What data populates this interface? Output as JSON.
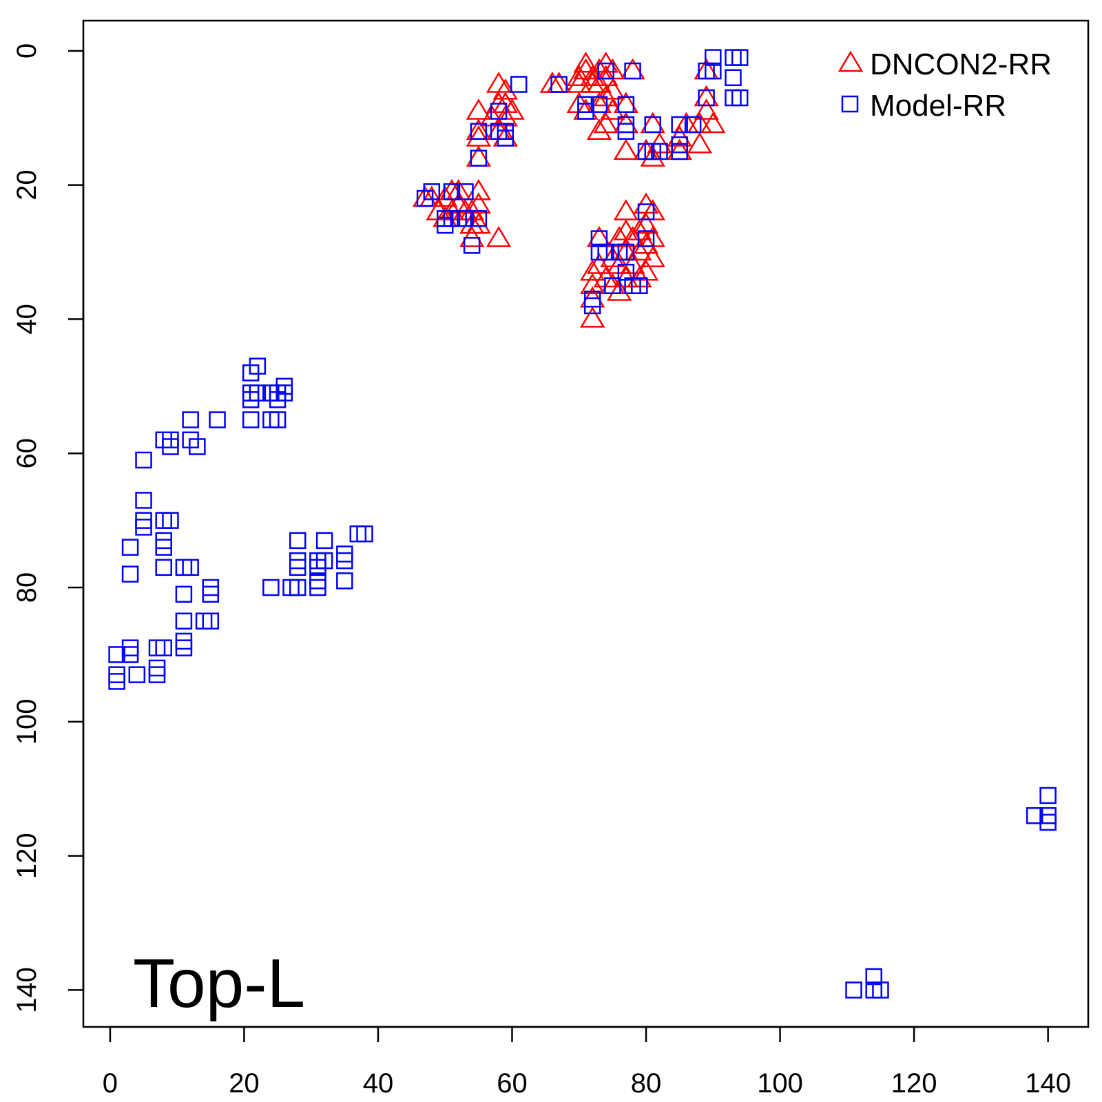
{
  "chart_data": {
    "type": "scatter",
    "title": "",
    "xlabel": "",
    "ylabel": "",
    "annotation": "Top-L",
    "xlim": [
      -4,
      146
    ],
    "ylim": [
      145.5,
      -4.5
    ],
    "y_reversed": true,
    "x_ticks": [
      0,
      20,
      40,
      60,
      80,
      100,
      120,
      140
    ],
    "y_ticks": [
      0,
      20,
      40,
      60,
      80,
      100,
      120,
      140
    ],
    "x_tick_labels": [
      "0",
      "20",
      "40",
      "60",
      "80",
      "100",
      "120",
      "140"
    ],
    "y_tick_labels": [
      "0",
      "20",
      "40",
      "60",
      "80",
      "100",
      "120",
      "140"
    ],
    "grid": false,
    "legend_position": "top-right",
    "series": [
      {
        "name": "DNCON2-RR",
        "marker": "triangle",
        "color": "#ff0000",
        "points": [
          [
            58,
            5
          ],
          [
            59,
            6
          ],
          [
            58,
            8
          ],
          [
            59,
            8
          ],
          [
            60,
            9
          ],
          [
            57,
            10
          ],
          [
            59,
            10
          ],
          [
            58,
            12
          ],
          [
            59,
            13
          ],
          [
            55,
            9
          ],
          [
            55,
            12
          ],
          [
            55,
            13
          ],
          [
            55,
            16
          ],
          [
            66,
            5
          ],
          [
            67,
            5
          ],
          [
            70,
            5
          ],
          [
            70,
            4
          ],
          [
            71,
            3
          ],
          [
            71,
            2
          ],
          [
            72,
            4
          ],
          [
            72,
            5
          ],
          [
            73,
            3
          ],
          [
            73,
            5
          ],
          [
            74,
            2
          ],
          [
            74,
            4
          ],
          [
            75,
            3
          ],
          [
            75,
            6
          ],
          [
            78,
            3
          ],
          [
            70,
            8
          ],
          [
            71,
            9
          ],
          [
            73,
            8
          ],
          [
            74,
            7
          ],
          [
            75,
            9
          ],
          [
            77,
            8
          ],
          [
            77,
            11
          ],
          [
            77,
            15
          ],
          [
            73,
            12
          ],
          [
            74,
            11
          ],
          [
            81,
            11
          ],
          [
            82,
            14
          ],
          [
            81,
            16
          ],
          [
            80,
            15
          ],
          [
            85,
            13
          ],
          [
            85,
            15
          ],
          [
            86,
            11
          ],
          [
            88,
            11
          ],
          [
            88,
            14
          ],
          [
            89,
            3
          ],
          [
            89,
            7
          ],
          [
            89,
            9
          ],
          [
            90,
            11
          ],
          [
            47,
            22
          ],
          [
            48,
            22
          ],
          [
            49,
            24
          ],
          [
            50,
            22
          ],
          [
            50,
            25
          ],
          [
            51,
            21
          ],
          [
            51,
            24
          ],
          [
            52,
            21
          ],
          [
            52,
            23
          ],
          [
            53,
            24
          ],
          [
            54,
            24
          ],
          [
            54,
            26
          ],
          [
            54,
            28
          ],
          [
            55,
            21
          ],
          [
            55,
            23
          ],
          [
            55,
            26
          ],
          [
            58,
            28
          ],
          [
            72,
            33
          ],
          [
            72,
            35
          ],
          [
            72,
            37
          ],
          [
            72,
            40
          ],
          [
            73,
            28
          ],
          [
            73,
            32
          ],
          [
            74,
            34
          ],
          [
            75,
            31
          ],
          [
            75,
            35
          ],
          [
            76,
            28
          ],
          [
            76,
            32
          ],
          [
            76,
            36
          ],
          [
            77,
            24
          ],
          [
            77,
            27
          ],
          [
            77,
            30
          ],
          [
            77,
            34
          ],
          [
            78,
            28
          ],
          [
            78,
            32
          ],
          [
            79,
            27
          ],
          [
            79,
            30
          ],
          [
            79,
            34
          ],
          [
            80,
            23
          ],
          [
            80,
            26
          ],
          [
            80,
            29
          ],
          [
            80,
            33
          ],
          [
            81,
            24
          ],
          [
            81,
            28
          ],
          [
            81,
            31
          ]
        ]
      },
      {
        "name": "Model-RR",
        "marker": "square",
        "color": "#0000ff",
        "points": [
          [
            58,
            9
          ],
          [
            58,
            12
          ],
          [
            59,
            12
          ],
          [
            59,
            13
          ],
          [
            61,
            5
          ],
          [
            55,
            12
          ],
          [
            55,
            16
          ],
          [
            67,
            5
          ],
          [
            71,
            8
          ],
          [
            71,
            9
          ],
          [
            73,
            8
          ],
          [
            74,
            3
          ],
          [
            77,
            8
          ],
          [
            77,
            11
          ],
          [
            77,
            12
          ],
          [
            78,
            3
          ],
          [
            80,
            15
          ],
          [
            81,
            11
          ],
          [
            81,
            15
          ],
          [
            82,
            15
          ],
          [
            85,
            11
          ],
          [
            85,
            14
          ],
          [
            85,
            15
          ],
          [
            87,
            11
          ],
          [
            89,
            3
          ],
          [
            89,
            7
          ],
          [
            90,
            1
          ],
          [
            90,
            3
          ],
          [
            93,
            1
          ],
          [
            93,
            4
          ],
          [
            93,
            7
          ],
          [
            94,
            1
          ],
          [
            94,
            7
          ],
          [
            47,
            22
          ],
          [
            48,
            21
          ],
          [
            50,
            25
          ],
          [
            50,
            26
          ],
          [
            51,
            21
          ],
          [
            51,
            25
          ],
          [
            52,
            25
          ],
          [
            53,
            21
          ],
          [
            53,
            25
          ],
          [
            54,
            29
          ],
          [
            55,
            25
          ],
          [
            72,
            37
          ],
          [
            72,
            38
          ],
          [
            73,
            28
          ],
          [
            73,
            30
          ],
          [
            74,
            30
          ],
          [
            75,
            35
          ],
          [
            76,
            30
          ],
          [
            77,
            30
          ],
          [
            77,
            33
          ],
          [
            78,
            35
          ],
          [
            79,
            35
          ],
          [
            80,
            24
          ],
          [
            80,
            28
          ],
          [
            22,
            47
          ],
          [
            21,
            48
          ],
          [
            21,
            51
          ],
          [
            22,
            51
          ],
          [
            21,
            52
          ],
          [
            21,
            55
          ],
          [
            24,
            51
          ],
          [
            25,
            51
          ],
          [
            26,
            50
          ],
          [
            26,
            51
          ],
          [
            25,
            52
          ],
          [
            24,
            55
          ],
          [
            25,
            55
          ],
          [
            16,
            55
          ],
          [
            12,
            55
          ],
          [
            12,
            58
          ],
          [
            13,
            59
          ],
          [
            8,
            58
          ],
          [
            9,
            58
          ],
          [
            9,
            59
          ],
          [
            5,
            61
          ],
          [
            5,
            67
          ],
          [
            5,
            70
          ],
          [
            5,
            71
          ],
          [
            8,
            70
          ],
          [
            9,
            70
          ],
          [
            8,
            73
          ],
          [
            8,
            74
          ],
          [
            8,
            77
          ],
          [
            3,
            74
          ],
          [
            3,
            78
          ],
          [
            11,
            77
          ],
          [
            12,
            77
          ],
          [
            11,
            81
          ],
          [
            15,
            80
          ],
          [
            15,
            81
          ],
          [
            11,
            85
          ],
          [
            14,
            85
          ],
          [
            15,
            85
          ],
          [
            11,
            88
          ],
          [
            11,
            89
          ],
          [
            3,
            89
          ],
          [
            3,
            90
          ],
          [
            1,
            90
          ],
          [
            1,
            93
          ],
          [
            1,
            94
          ],
          [
            4,
            93
          ],
          [
            7,
            89
          ],
          [
            8,
            89
          ],
          [
            7,
            92
          ],
          [
            7,
            93
          ],
          [
            28,
            73
          ],
          [
            32,
            73
          ],
          [
            37,
            72
          ],
          [
            38,
            72
          ],
          [
            28,
            76
          ],
          [
            28,
            77
          ],
          [
            31,
            76
          ],
          [
            31,
            77
          ],
          [
            32,
            76
          ],
          [
            35,
            75
          ],
          [
            35,
            76
          ],
          [
            24,
            80
          ],
          [
            27,
            80
          ],
          [
            28,
            80
          ],
          [
            31,
            79
          ],
          [
            31,
            80
          ],
          [
            35,
            79
          ],
          [
            140,
            111
          ],
          [
            140,
            114
          ],
          [
            140,
            115
          ],
          [
            138,
            114
          ],
          [
            111,
            140
          ],
          [
            114,
            138
          ],
          [
            114,
            140
          ],
          [
            115,
            140
          ]
        ]
      }
    ]
  }
}
